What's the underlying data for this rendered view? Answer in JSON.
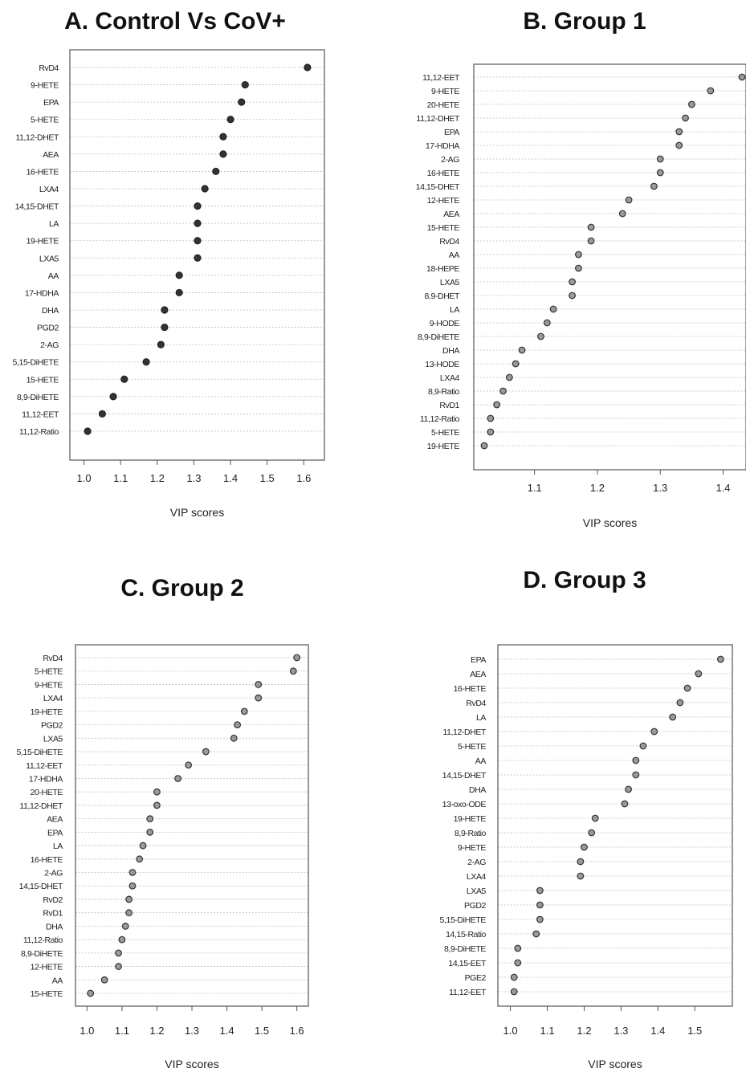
{
  "chart_data": [
    {
      "type": "scatter",
      "title": "A. Control Vs CoV+",
      "xlabel": "VIP scores",
      "xlim": [
        0.99,
        1.63
      ],
      "xticks": [
        "1.0",
        "1.1",
        "1.2",
        "1.3",
        "1.4",
        "1.5",
        "1.6"
      ],
      "point_style": "filled",
      "grid": "horizontal-dotted",
      "categories": [
        "RvD4",
        "9-HETE",
        "EPA",
        "5-HETE",
        "11,12-DHET",
        "AEA",
        "16-HETE",
        "LXA4",
        "14,15-DHET",
        "LA",
        "19-HETE",
        "LXA5",
        "AA",
        "17-HDHA",
        "DHA",
        "PGD2",
        "2-AG",
        "5,15-DiHETE",
        "15-HETE",
        "8,9-DiHETE",
        "11,12-EET",
        "11,12-Ratio"
      ],
      "values": [
        1.61,
        1.44,
        1.43,
        1.4,
        1.38,
        1.38,
        1.36,
        1.33,
        1.31,
        1.31,
        1.31,
        1.31,
        1.26,
        1.26,
        1.22,
        1.22,
        1.21,
        1.17,
        1.11,
        1.08,
        1.05,
        1.01
      ]
    },
    {
      "type": "scatter",
      "title": "B. Group 1",
      "xlabel": "VIP scores",
      "xlim": [
        1.02,
        1.43
      ],
      "xticks": [
        "1.1",
        "1.2",
        "1.3",
        "1.4"
      ],
      "point_style": "open",
      "grid": "horizontal-dotted",
      "categories": [
        "11,12-EET",
        "9-HETE",
        "20-HETE",
        "11,12-DHET",
        "EPA",
        "17-HDHA",
        "2-AG",
        "16-HETE",
        "14,15-DHET",
        "12-HETE",
        "AEA",
        "15-HETE",
        "RvD4",
        "AA",
        "18-HEPE",
        "LXA5",
        "8,9-DHET",
        "LA",
        "9-HODE",
        "8,9-DiHETE",
        "DHA",
        "13-HODE",
        "LXA4",
        "8,9-Ratio",
        "RvD1",
        "11,12-Ratio",
        "5-HETE",
        "19-HETE"
      ],
      "values": [
        1.43,
        1.38,
        1.35,
        1.34,
        1.33,
        1.33,
        1.3,
        1.3,
        1.29,
        1.25,
        1.24,
        1.19,
        1.19,
        1.17,
        1.17,
        1.16,
        1.16,
        1.13,
        1.12,
        1.11,
        1.08,
        1.07,
        1.06,
        1.05,
        1.04,
        1.03,
        1.03,
        1.02
      ]
    },
    {
      "type": "scatter",
      "title": "C. Group 2",
      "xlabel": "VIP scores",
      "xlim": [
        0.99,
        1.61
      ],
      "xticks": [
        "1.0",
        "1.1",
        "1.2",
        "1.3",
        "1.4",
        "1.5",
        "1.6"
      ],
      "point_style": "open",
      "grid": "horizontal-dotted",
      "categories": [
        "RvD4",
        "5-HETE",
        "9-HETE",
        "LXA4",
        "19-HETE",
        "PGD2",
        "LXA5",
        "5,15-DiHETE",
        "11,12-EET",
        "17-HDHA",
        "20-HETE",
        "11,12-DHET",
        "AEA",
        "EPA",
        "LA",
        "16-HETE",
        "2-AG",
        "14,15-DHET",
        "RvD2",
        "RvD1",
        "DHA",
        "11,12-Ratio",
        "8,9-DiHETE",
        "12-HETE",
        "AA",
        "15-HETE"
      ],
      "values": [
        1.6,
        1.59,
        1.49,
        1.49,
        1.45,
        1.43,
        1.42,
        1.34,
        1.29,
        1.26,
        1.2,
        1.2,
        1.18,
        1.18,
        1.16,
        1.15,
        1.13,
        1.13,
        1.12,
        1.12,
        1.11,
        1.1,
        1.09,
        1.09,
        1.05,
        1.01
      ]
    },
    {
      "type": "scatter",
      "title": "D. Group 3",
      "xlabel": "VIP scores",
      "xlim": [
        0.99,
        1.58
      ],
      "xticks": [
        "1.0",
        "1.1",
        "1.2",
        "1.3",
        "1.4",
        "1.5"
      ],
      "point_style": "open",
      "grid": "horizontal-dotted",
      "categories": [
        "EPA",
        "AEA",
        "16-HETE",
        "RvD4",
        "LA",
        "11,12-DHET",
        "5-HETE",
        "AA",
        "14,15-DHET",
        "DHA",
        "13-oxo-ODE",
        "19-HETE",
        "8,9-Ratio",
        "9-HETE",
        "2-AG",
        "LXA4",
        "LXA5",
        "PGD2",
        "5,15-DiHETE",
        "14,15-Ratio",
        "8,9-DiHETE",
        "14,15-EET",
        "PGE2",
        "11,12-EET"
      ],
      "values": [
        1.57,
        1.51,
        1.48,
        1.46,
        1.44,
        1.39,
        1.36,
        1.34,
        1.34,
        1.32,
        1.31,
        1.23,
        1.22,
        1.2,
        1.19,
        1.19,
        1.08,
        1.08,
        1.08,
        1.07,
        1.02,
        1.02,
        1.01,
        1.01
      ]
    }
  ]
}
